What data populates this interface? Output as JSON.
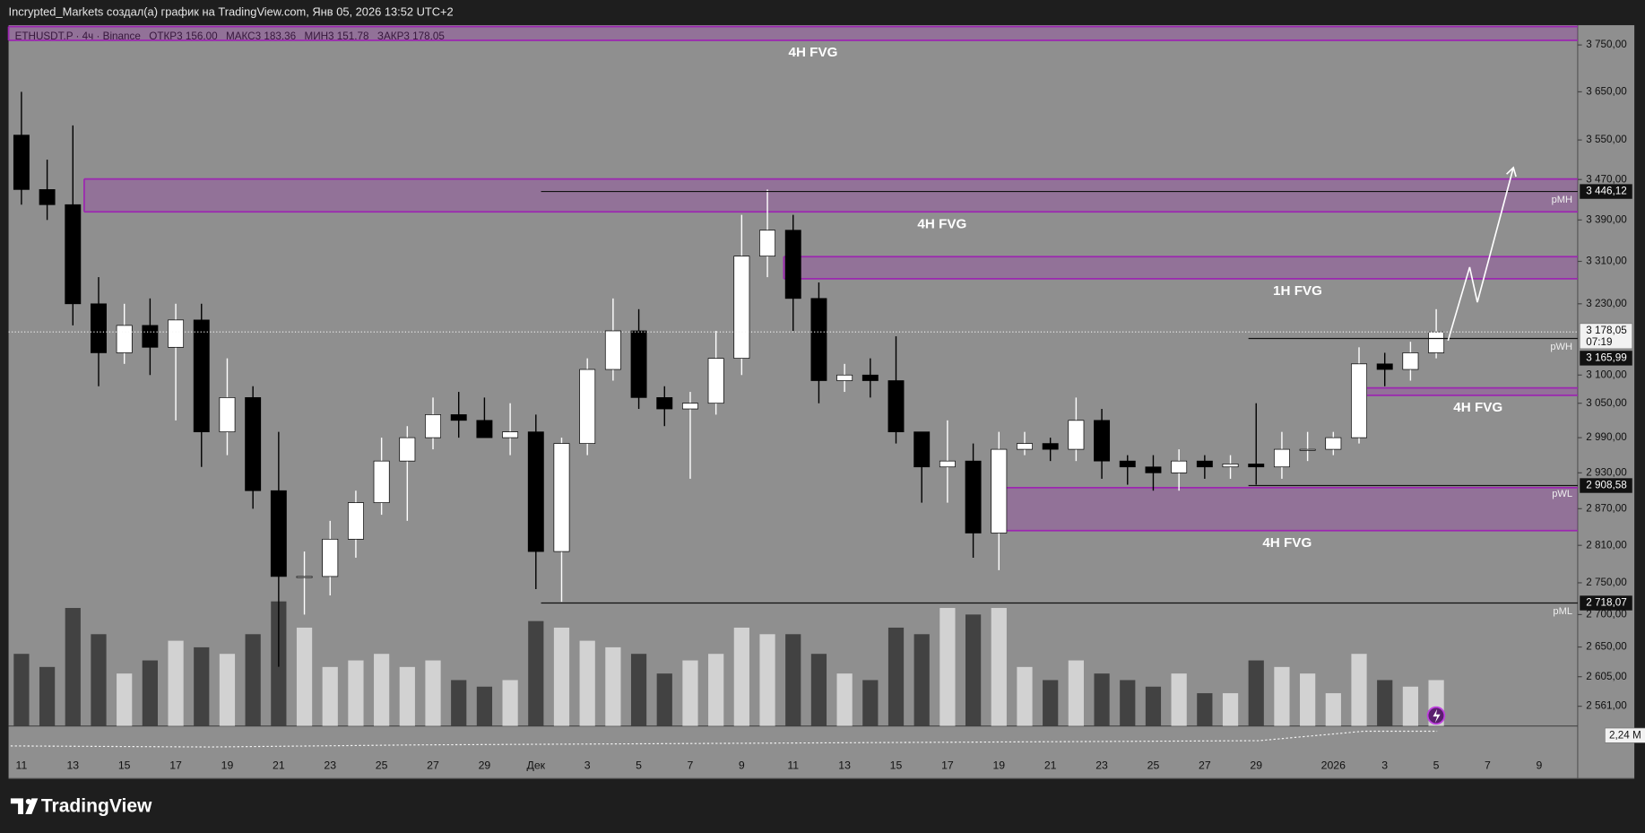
{
  "header": {
    "author_line": "Incrypted_Markets создал(а) график на TradingView.com, Янв 05, 2026 13:52 UTC+2"
  },
  "footer": {
    "brand": "TradingView"
  },
  "chart_data": {
    "type": "candlestick",
    "symbol": "ETHUSDT.P · 4ч · Binance",
    "ohlc_legend": [
      {
        "label": "ОТКР",
        "value": "3 156,00"
      },
      {
        "label": "МАКС",
        "value": "3 183,36"
      },
      {
        "label": "МИН",
        "value": "3 151,78"
      },
      {
        "label": "ЗАКР",
        "value": "3 178,05"
      }
    ],
    "categories": [
      "11",
      null,
      "13",
      null,
      "15",
      null,
      "17",
      null,
      "19",
      null,
      "21",
      null,
      "23",
      null,
      "25",
      null,
      "27",
      null,
      "29",
      null,
      "Дек",
      null,
      "3",
      null,
      "5",
      null,
      "7",
      null,
      "9",
      null,
      "11",
      null,
      "13",
      null,
      "15",
      null,
      "17",
      null,
      "19",
      null,
      "21",
      null,
      "23",
      null,
      "25",
      null,
      "27",
      null,
      "29",
      null,
      null,
      "2026",
      null,
      "3",
      null,
      "5",
      null,
      "7",
      null,
      "9",
      null
    ],
    "open": [
      3560,
      3450,
      3420,
      3230,
      3140,
      3190,
      3150,
      3200,
      3000,
      3060,
      2900,
      2760,
      2760,
      2820,
      2880,
      2950,
      2990,
      3030,
      3020,
      2990,
      3000,
      2800,
      2980,
      3110,
      3180,
      3060,
      3040,
      3050,
      3130,
      3320,
      3370,
      3240,
      3090,
      3100,
      3090,
      3000,
      2940,
      2950,
      2830,
      2970,
      2980,
      2970,
      3020,
      2950,
      2940,
      2930,
      2950,
      2940,
      2945,
      2940,
      2970,
      2970,
      2990,
      3120,
      3110,
      3140,
      null,
      null,
      null,
      null,
      null
    ],
    "high": [
      3650,
      3510,
      3580,
      3280,
      3230,
      3240,
      3230,
      3230,
      3130,
      3080,
      3000,
      2800,
      2850,
      2900,
      2990,
      3010,
      3060,
      3070,
      3060,
      3050,
      3030,
      2990,
      3130,
      3240,
      3220,
      3080,
      3070,
      3180,
      3400,
      3450,
      3400,
      3270,
      3120,
      3130,
      3170,
      3000,
      3020,
      2980,
      3000,
      3000,
      2990,
      3060,
      3040,
      2960,
      2960,
      2970,
      2960,
      2960,
      3050,
      3000,
      3000,
      3000,
      3150,
      3140,
      3160,
      3220,
      null,
      null,
      null,
      null,
      null
    ],
    "low": [
      3420,
      3390,
      3190,
      3080,
      3120,
      3100,
      3020,
      2940,
      2960,
      2870,
      2620,
      2700,
      2730,
      2790,
      2860,
      2850,
      2970,
      2990,
      2990,
      2960,
      2740,
      2720,
      2960,
      3090,
      3040,
      3010,
      2920,
      3030,
      3100,
      3280,
      3180,
      3050,
      3070,
      3060,
      2980,
      2880,
      2880,
      2790,
      2770,
      2960,
      2950,
      2950,
      2920,
      2910,
      2900,
      2900,
      2920,
      2920,
      2910,
      2920,
      2950,
      2960,
      2980,
      3080,
      3090,
      3130,
      null,
      null,
      null,
      null,
      null
    ],
    "close": [
      3450,
      3420,
      3230,
      3140,
      3190,
      3150,
      3200,
      3000,
      3060,
      2900,
      2760,
      2760,
      2820,
      2880,
      2950,
      2990,
      3030,
      3020,
      2990,
      3000,
      2800,
      2980,
      3110,
      3180,
      3060,
      3040,
      3050,
      3130,
      3320,
      3370,
      3240,
      3090,
      3100,
      3090,
      3000,
      2940,
      2950,
      2830,
      2970,
      2980,
      2970,
      3020,
      2950,
      2940,
      2930,
      2950,
      2940,
      2945,
      2940,
      2970,
      2970,
      2990,
      3120,
      3110,
      3140,
      3178.05,
      null,
      null,
      null,
      null,
      null
    ],
    "up_color": "#ffffff",
    "down_color": "#000000",
    "volume": [
      55,
      45,
      90,
      70,
      40,
      50,
      65,
      60,
      55,
      70,
      95,
      75,
      45,
      50,
      55,
      45,
      50,
      35,
      30,
      35,
      80,
      75,
      65,
      60,
      55,
      40,
      50,
      55,
      75,
      70,
      70,
      55,
      40,
      35,
      75,
      70,
      90,
      85,
      90,
      45,
      35,
      50,
      40,
      35,
      30,
      40,
      25,
      25,
      50,
      45,
      40,
      25,
      55,
      35,
      30,
      35,
      null,
      null,
      null,
      null,
      null
    ],
    "vlim": [
      0,
      100
    ],
    "volume_up_color": "#d9d9d9",
    "volume_down_color": "#3a3a3a",
    "volume_ma_label": "2,24 M",
    "ylim": [
      2532,
      3793
    ],
    "log": true,
    "grid": false,
    "yticks": [
      {
        "value": 3750,
        "label": "3 750,00"
      },
      {
        "value": 3650,
        "label": "3 650,00"
      },
      {
        "value": 3550,
        "label": "3 550,00"
      },
      {
        "value": 3470,
        "label": "3 470,00"
      },
      {
        "value": 3390,
        "label": "3 390,00"
      },
      {
        "value": 3310,
        "label": "3 310,00"
      },
      {
        "value": 3230,
        "label": "3 230,00"
      },
      {
        "value": 3100,
        "label": "3 100,00"
      },
      {
        "value": 3050,
        "label": "3 050,00"
      },
      {
        "value": 2990,
        "label": "2 990,00"
      },
      {
        "value": 2930,
        "label": "2 930,00"
      },
      {
        "value": 2870,
        "label": "2 870,00"
      },
      {
        "value": 2810,
        "label": "2 810,00"
      },
      {
        "value": 2750,
        "label": "2 750,00"
      },
      {
        "value": 2700,
        "label": "2 700,00"
      },
      {
        "value": 2650,
        "label": "2 650,00"
      },
      {
        "value": 2605,
        "label": "2 605,00"
      },
      {
        "value": 2561,
        "label": "2 561,00"
      }
    ],
    "zones": [
      {
        "label": "4H FVG",
        "start": -0.5,
        "top": 3790,
        "bottom": 3760
      },
      {
        "label": "4H FVG",
        "start": 2.44,
        "top": 3471,
        "bottom": 3406
      },
      {
        "label": "1H FVG",
        "start": 29.64,
        "top": 3319,
        "bottom": 3277
      },
      {
        "label": "4H FVG",
        "start": 52.07,
        "top": 3077,
        "bottom": 3064
      },
      {
        "label": "4H FVG",
        "start": 37.8,
        "top": 2905,
        "bottom": 2834
      }
    ],
    "zone_color": "#9c27b0",
    "levels": [
      {
        "name": "pMH",
        "value": 3446.12,
        "value_label": "3 446,12",
        "start": 20.2
      },
      {
        "name": "pWH",
        "value": 3165.99,
        "value_label": "3 165,99",
        "start": 47.7
      },
      {
        "name": "pWL",
        "value": 2908.58,
        "value_label": "2 908,58",
        "start": 47.7
      },
      {
        "name": "pML",
        "value": 2718.07,
        "value_label": "2 718,07",
        "start": 20.2
      }
    ],
    "last_price": {
      "value": 3178.05,
      "label": "3 178,05",
      "countdown": "07:19"
    },
    "projection": {
      "x": [
        55.46,
        56.3,
        56.6,
        58.0
      ],
      "y": [
        3162,
        3299,
        3233,
        3494
      ]
    }
  }
}
